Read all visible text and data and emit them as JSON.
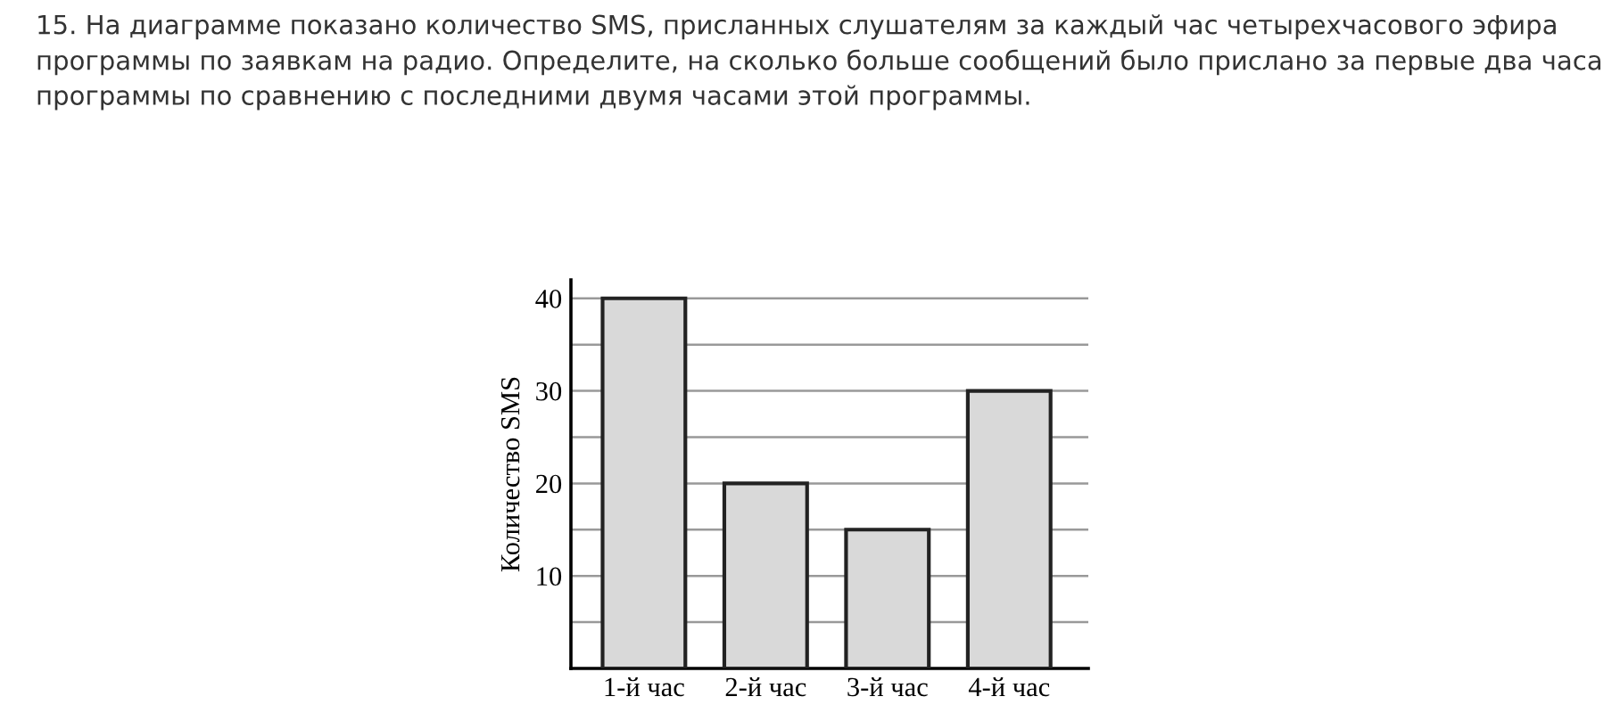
{
  "chart_data": {
    "type": "bar",
    "title": "15. На диаграмме показано количество SMS, присланных слушателям за каждый час четырехчасового эфира программы по заявкам на радио. Определите, на сколько больше сообщений было прислано за первые два часа программы по сравнению с последними двумя часами этой программы.",
    "ylabel": "Количество SMS",
    "categories": [
      "1-й час",
      "2-й час",
      "3-й час",
      "4-й час"
    ],
    "values": [
      40,
      20,
      15,
      30
    ],
    "color": "#d9d9d9",
    "ylim": [
      0,
      42
    ],
    "yticks": [
      {
        "value": 5,
        "label": null
      },
      10,
      {
        "value": 15,
        "label": null
      },
      20,
      {
        "value": 25,
        "label": null
      },
      30,
      {
        "value": 35,
        "label": null
      },
      40
    ],
    "grid": "y"
  }
}
